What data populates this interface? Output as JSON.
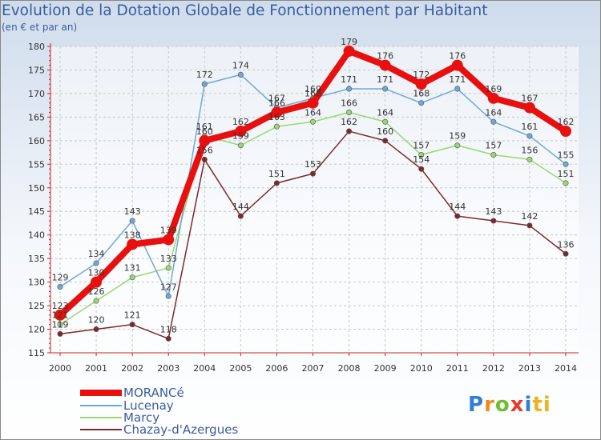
{
  "header": {
    "title": "Evolution de la Dotation Globale de Fonctionnement par Habitant",
    "subtitle": "(en € et par an)"
  },
  "logo": {
    "letters": [
      "P",
      "r",
      "o",
      "x",
      "i",
      "ti"
    ]
  },
  "chart_data": {
    "type": "line",
    "title": "Evolution de la Dotation Globale de Fonctionnement par Habitant",
    "ylabel": "(en € et par an)",
    "xlabel": "",
    "x": [
      "2000",
      "2001",
      "2002",
      "2003",
      "2004",
      "2005",
      "2006",
      "2007",
      "2008",
      "2009",
      "2010",
      "2011",
      "2012",
      "2013",
      "2014"
    ],
    "ylim": [
      115,
      180
    ],
    "yticks": [
      115,
      120,
      125,
      130,
      135,
      140,
      145,
      150,
      155,
      160,
      165,
      170,
      175,
      180
    ],
    "grid": true,
    "legend": "bottom-left",
    "series": [
      {
        "name": "MORANCé",
        "color": "#e8100e",
        "values": [
          123,
          130,
          138,
          139,
          160,
          162,
          166,
          168,
          179,
          176,
          172,
          176,
          169,
          167,
          162
        ],
        "labels": [
          "123",
          "130",
          "138",
          "139",
          "160",
          "162",
          "166",
          "168",
          "179",
          "176",
          "172",
          "176",
          "169",
          "167",
          "162"
        ]
      },
      {
        "name": "Lucenay",
        "color": "#6fa8d6",
        "values": [
          129,
          134,
          143,
          127,
          172,
          174,
          167,
          169,
          171,
          171,
          168,
          171,
          164,
          161,
          155
        ],
        "labels": [
          "129",
          "134",
          "143",
          "127",
          "172",
          "174",
          "167",
          "169",
          "171",
          "171",
          "168",
          "171",
          "164",
          "161",
          "155"
        ]
      },
      {
        "name": "Marcy",
        "color": "#9bd672",
        "values": [
          121,
          126,
          131,
          133,
          161,
          159,
          163,
          164,
          166,
          164,
          157,
          159,
          157,
          156,
          151
        ],
        "labels": [
          "121",
          "126",
          "131",
          "133",
          "161",
          "159",
          "163",
          "164",
          "166",
          "164",
          "157",
          "159",
          "157",
          "156",
          "151"
        ]
      },
      {
        "name": "Chazay-d'Azergues",
        "color": "#7b2a2a",
        "values": [
          119,
          120,
          121,
          118,
          156,
          144,
          151,
          153,
          162,
          160,
          154,
          144,
          143,
          142,
          136
        ],
        "labels": [
          "119",
          "120",
          "121",
          "118",
          "156",
          "144",
          "151",
          "153",
          "162",
          "160",
          "154",
          "144",
          "143",
          "142",
          "136"
        ]
      }
    ]
  }
}
